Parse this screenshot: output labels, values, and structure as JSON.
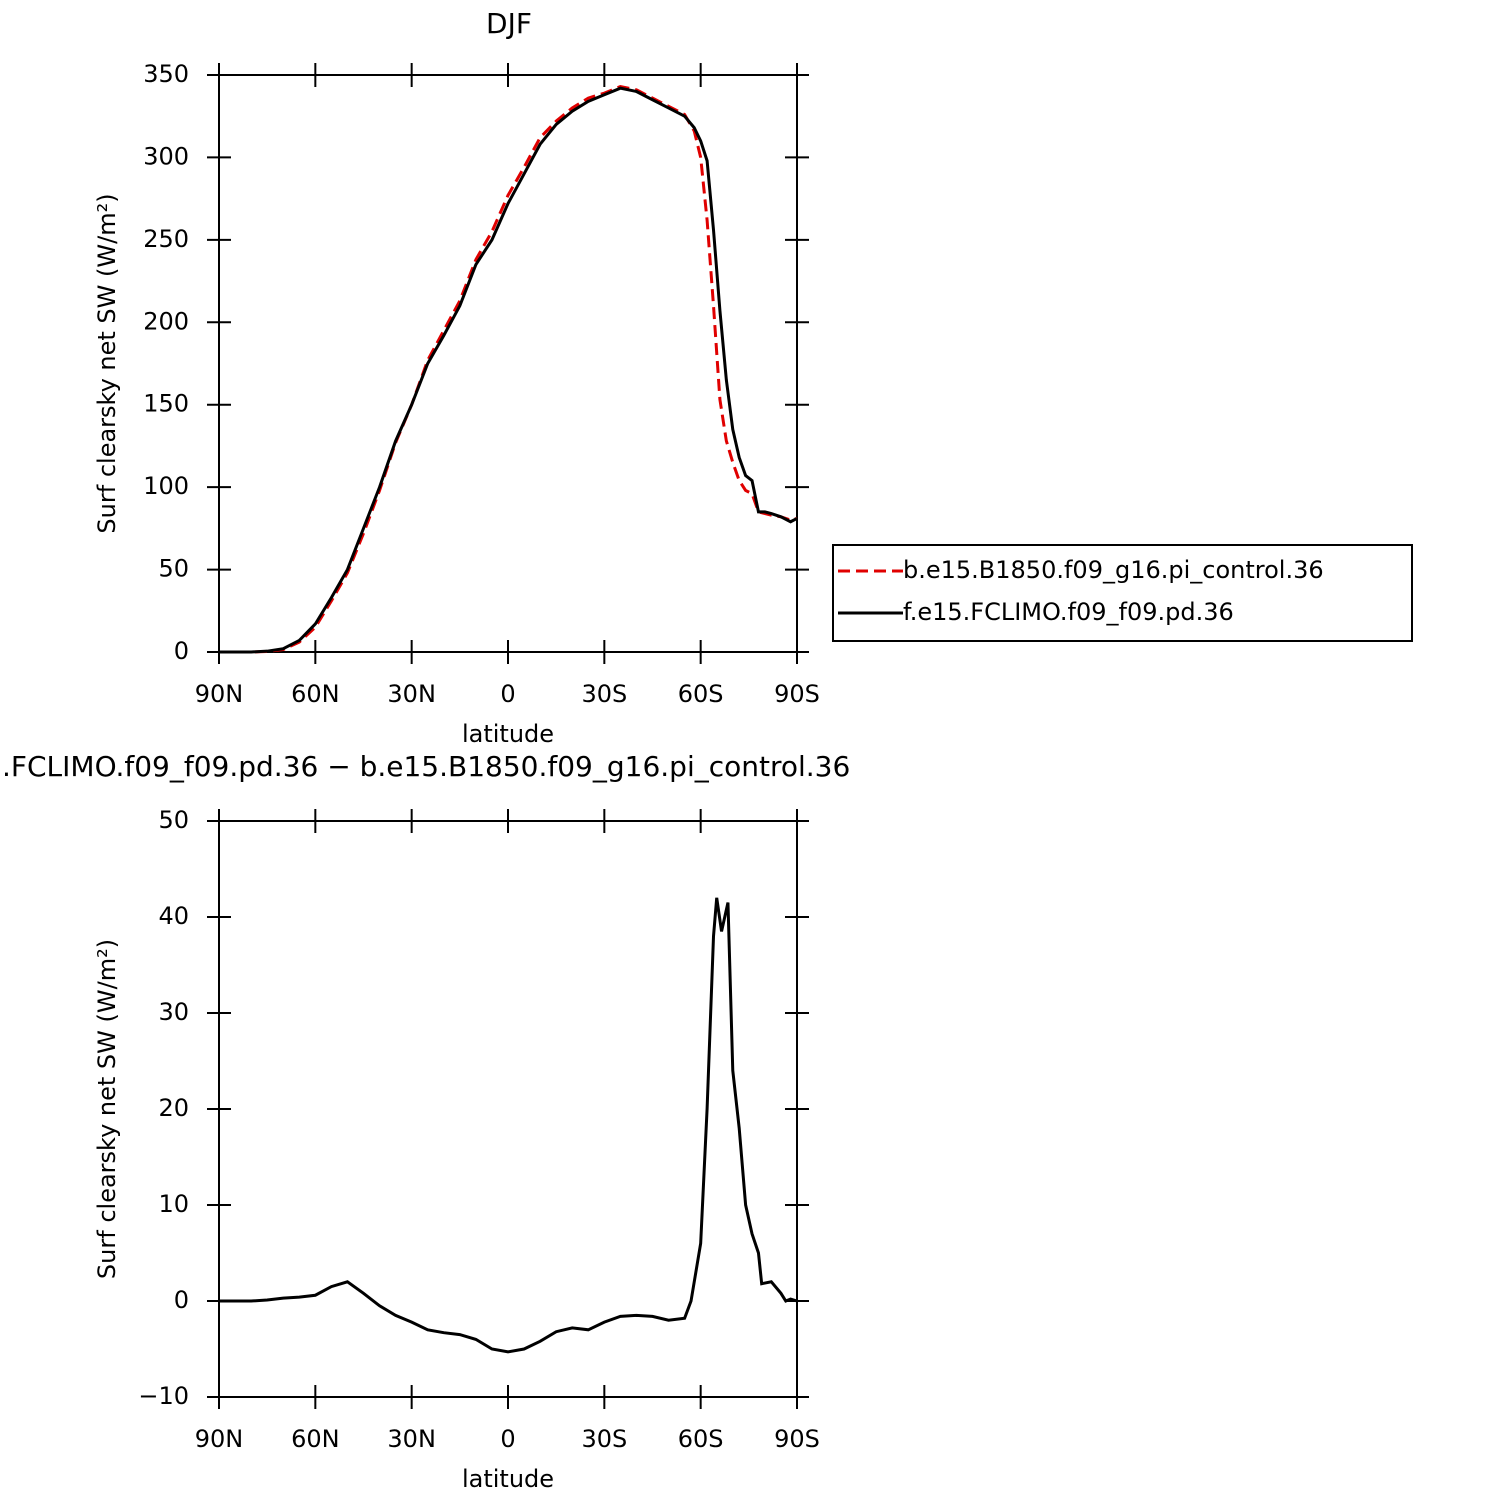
{
  "chart_data": [
    {
      "type": "line",
      "title": "DJF",
      "xlabel": "latitude",
      "ylabel": "Surf clearsky net SW (W/m²)",
      "x": [
        90,
        85,
        80,
        75,
        70,
        65,
        60,
        55,
        50,
        45,
        40,
        35,
        30,
        25,
        20,
        15,
        10,
        5,
        0,
        -5,
        -10,
        -15,
        -20,
        -25,
        -30,
        -35,
        -40,
        -45,
        -50,
        -55,
        -58,
        -60,
        -62,
        -64,
        -66,
        -68,
        -70,
        -72,
        -74,
        -76,
        -78,
        -80,
        -82,
        -85,
        -88,
        -90
      ],
      "series": [
        {
          "name": "b.e15.B1850.f09_g16.pi_control.36",
          "color": "#e00000",
          "line_style": "dashed",
          "values": [
            0,
            0,
            0,
            0.3,
            1.5,
            6,
            15,
            31,
            48,
            72,
            98,
            127,
            150,
            177,
            195,
            213,
            238,
            255,
            277,
            294,
            312,
            322,
            330,
            336,
            339,
            343,
            341,
            336,
            331,
            326,
            316,
            300,
            262,
            210,
            153,
            128,
            115,
            104,
            98,
            96,
            85,
            84,
            83,
            82,
            80,
            81
          ]
        },
        {
          "name": "f.e15.FCLIMO.f09_f09.pd.36",
          "color": "#000000",
          "line_style": "solid",
          "values": [
            0,
            0,
            0,
            0.5,
            2,
            7,
            17,
            33,
            50,
            75,
            100,
            128,
            150,
            175,
            192,
            210,
            235,
            250,
            272,
            290,
            308,
            320,
            328,
            334,
            338,
            342,
            340,
            335,
            330,
            325,
            318,
            310,
            298,
            256,
            207,
            165,
            135,
            118,
            107,
            104,
            85,
            85,
            84,
            82,
            79,
            81
          ]
        }
      ],
      "xlim": [
        90,
        -90
      ],
      "xticks": [
        {
          "value": 90,
          "label": "90N"
        },
        {
          "value": 60,
          "label": "60N"
        },
        {
          "value": 30,
          "label": "30N"
        },
        0,
        {
          "value": -30,
          "label": "30S"
        },
        {
          "value": -60,
          "label": "60S"
        },
        {
          "value": -90,
          "label": "90S"
        }
      ],
      "ylim": [
        0,
        350
      ],
      "yticks": [
        0,
        50,
        100,
        150,
        200,
        250,
        300,
        350
      ],
      "legend": "right"
    },
    {
      "type": "line",
      "title": ".FCLIMO.f09_f09.pd.36 − b.e15.B1850.f09_g16.pi_control.36",
      "xlabel": "latitude",
      "ylabel": "Surf clearsky net SW (W/m²)",
      "x": [
        90,
        85,
        80,
        75,
        70,
        65,
        60,
        55,
        50,
        45,
        40,
        35,
        30,
        25,
        20,
        15,
        10,
        5,
        0,
        -5,
        -10,
        -15,
        -20,
        -25,
        -30,
        -35,
        -40,
        -45,
        -50,
        -55,
        -57,
        -60,
        -62,
        -64,
        -65,
        -66.5,
        -68.5,
        -70,
        -72,
        -74,
        -76,
        -78,
        -79,
        -82,
        -85,
        -86.5,
        -88,
        -90
      ],
      "values": [
        0,
        0,
        0,
        0.1,
        0.3,
        0.4,
        0.6,
        1.5,
        2,
        0.8,
        -0.5,
        -1.5,
        -2.2,
        -3,
        -3.3,
        -3.5,
        -4,
        -5,
        -5.3,
        -5,
        -4.2,
        -3.2,
        -2.8,
        -3,
        -2.2,
        -1.6,
        -1.5,
        -1.6,
        -2,
        -1.8,
        0,
        6,
        20,
        38,
        42,
        38.5,
        41.5,
        24,
        18,
        10,
        7,
        5,
        1.8,
        2,
        0.8,
        0,
        0.2,
        0
      ],
      "color": "#000000",
      "xlim": [
        90,
        -90
      ],
      "xticks": [
        {
          "value": 90,
          "label": "90N"
        },
        {
          "value": 60,
          "label": "60N"
        },
        {
          "value": 30,
          "label": "30N"
        },
        0,
        {
          "value": -30,
          "label": "30S"
        },
        {
          "value": -60,
          "label": "60S"
        },
        {
          "value": -90,
          "label": "90S"
        }
      ],
      "ylim": [
        -10,
        50
      ],
      "yticks": [
        {
          "value": -10,
          "label": "−10"
        },
        0,
        10,
        20,
        30,
        40,
        50
      ]
    }
  ]
}
